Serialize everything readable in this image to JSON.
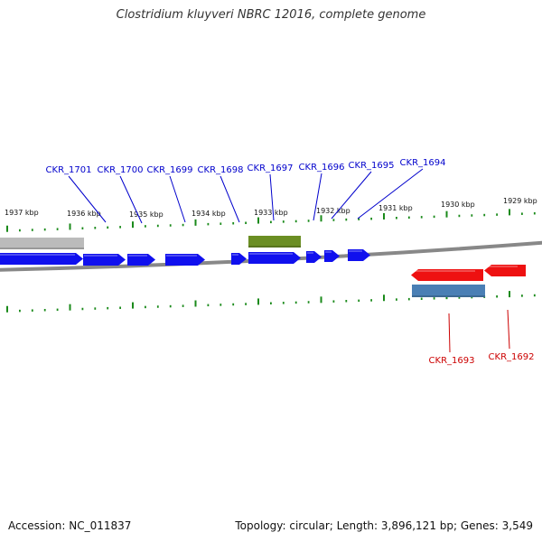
{
  "title": "Clostridium kluyveri NBRC 12016, complete genome",
  "footer": {
    "accession": "Accession: NC_011837",
    "summary": "Topology: circular; Length: 3,896,121 bp; Genes: 3,549"
  },
  "colors": {
    "forward_gene": "#1010ee",
    "reverse_gene": "#ee1111",
    "rna_feature": "#6b8e23",
    "reverse_feature": "#4a7fb5",
    "other_feature": "#bbbbbb",
    "tick": "#1a8a1a",
    "backbone": "#888888",
    "forward_label": "#0000cc",
    "reverse_label": "#cc0000"
  },
  "ruler": {
    "labels": [
      "1937 kbp",
      "1936 kbp",
      "1935 kbp",
      "1934 kbp",
      "1933 kbp",
      "1932 kbp",
      "1931 kbp",
      "1930 kbp",
      "1929 kbp"
    ]
  },
  "forward_labels": [
    "CKR_1701",
    "CKR_1700",
    "CKR_1699",
    "CKR_1698",
    "CKR_1697",
    "CKR_1696",
    "CKR_1695",
    "CKR_1694"
  ],
  "reverse_labels": [
    "CKR_1693",
    "CKR_1692"
  ]
}
